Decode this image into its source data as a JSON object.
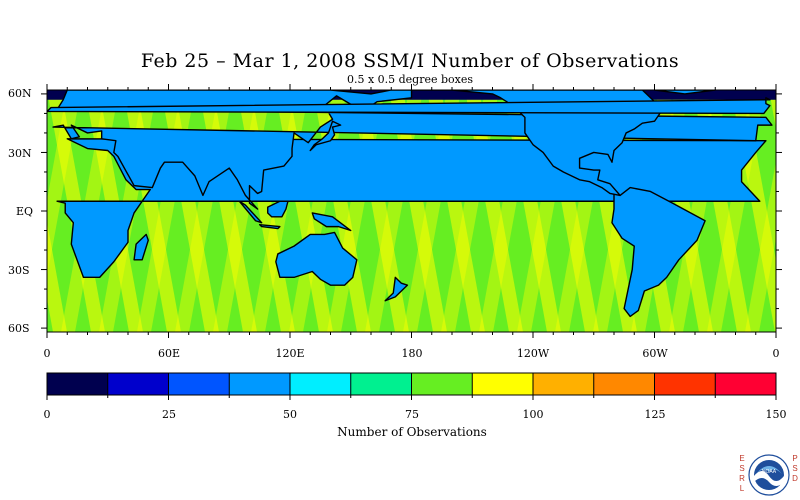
{
  "title": "Feb 25 – Mar 1, 2008 SSM/I Number of Observations",
  "subtitle": "0.5 x 0.5 degree boxes",
  "map": {
    "lat_labels": [
      "60N",
      "30N",
      "EQ",
      "30S",
      "60S"
    ],
    "lon_labels": [
      "0",
      "60E",
      "120E",
      "180",
      "120W",
      "60W",
      "0"
    ],
    "ocean_level": 78,
    "swath_band_level": 92,
    "ice_level": 0,
    "land_level": 40,
    "colors": {
      "coastline": "#000000"
    }
  },
  "colorbar": {
    "colors": [
      "#00004f",
      "#0000cc",
      "#0055ff",
      "#0099ff",
      "#00eeff",
      "#00f090",
      "#66ee22",
      "#ffff00",
      "#ffb000",
      "#ff8800",
      "#ff3300",
      "#ff0033"
    ],
    "tick_labels": [
      "0",
      "25",
      "50",
      "75",
      "100",
      "125",
      "150"
    ],
    "label": "Number of Observations"
  },
  "logo": {
    "left_letters": [
      "E",
      "S",
      "R",
      "L"
    ],
    "right_letters": [
      "P",
      "S",
      "D"
    ],
    "text": "NOAA"
  }
}
